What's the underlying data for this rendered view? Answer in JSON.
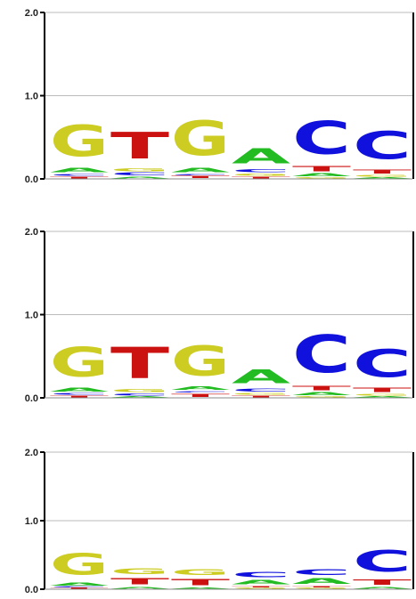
{
  "chart_data": [
    {
      "type": "sequence-logo",
      "ylim": [
        0,
        2
      ],
      "yticks": [
        {
          "value": 0,
          "label": "0.0"
        },
        {
          "value": 1,
          "label": "1.0"
        },
        {
          "value": 2,
          "label": "2.0"
        }
      ],
      "grid": true,
      "positions": [
        [
          {
            "letter": "T",
            "height": 0.03
          },
          {
            "letter": "C",
            "height": 0.03
          },
          {
            "letter": "A",
            "height": 0.09
          },
          {
            "letter": "G",
            "height": 0.6
          }
        ],
        [
          {
            "letter": "A",
            "height": 0.03
          },
          {
            "letter": "C",
            "height": 0.05
          },
          {
            "letter": "G",
            "height": 0.06
          },
          {
            "letter": "T",
            "height": 0.51
          }
        ],
        [
          {
            "letter": "T",
            "height": 0.04
          },
          {
            "letter": "C",
            "height": 0.02
          },
          {
            "letter": "A",
            "height": 0.09
          },
          {
            "letter": "G",
            "height": 0.67
          }
        ],
        [
          {
            "letter": "T",
            "height": 0.03
          },
          {
            "letter": "G",
            "height": 0.04
          },
          {
            "letter": "C",
            "height": 0.06
          },
          {
            "letter": "A",
            "height": 0.29
          }
        ],
        [
          {
            "letter": "G",
            "height": 0.02
          },
          {
            "letter": "A",
            "height": 0.05
          },
          {
            "letter": "T",
            "height": 0.1
          },
          {
            "letter": "C",
            "height": 0.64
          }
        ],
        [
          {
            "letter": "A",
            "height": 0.02
          },
          {
            "letter": "G",
            "height": 0.03
          },
          {
            "letter": "T",
            "height": 0.08
          },
          {
            "letter": "C",
            "height": 0.54
          }
        ]
      ]
    },
    {
      "type": "sequence-logo",
      "ylim": [
        0,
        2
      ],
      "yticks": [
        {
          "value": 0,
          "label": "0.0"
        },
        {
          "value": 1,
          "label": "1.0"
        },
        {
          "value": 2,
          "label": "2.0"
        }
      ],
      "grid": true,
      "positions": [
        [
          {
            "letter": "T",
            "height": 0.03
          },
          {
            "letter": "C",
            "height": 0.03
          },
          {
            "letter": "A",
            "height": 0.08
          },
          {
            "letter": "G",
            "height": 0.57
          }
        ],
        [
          {
            "letter": "A",
            "height": 0.02
          },
          {
            "letter": "C",
            "height": 0.04
          },
          {
            "letter": "G",
            "height": 0.05
          },
          {
            "letter": "T",
            "height": 0.6
          }
        ],
        [
          {
            "letter": "T",
            "height": 0.06
          },
          {
            "letter": "C",
            "height": 0.02
          },
          {
            "letter": "A",
            "height": 0.07
          },
          {
            "letter": "G",
            "height": 0.58
          }
        ],
        [
          {
            "letter": "T",
            "height": 0.03
          },
          {
            "letter": "G",
            "height": 0.03
          },
          {
            "letter": "C",
            "height": 0.06
          },
          {
            "letter": "A",
            "height": 0.27
          }
        ],
        [
          {
            "letter": "G",
            "height": 0.02
          },
          {
            "letter": "A",
            "height": 0.05
          },
          {
            "letter": "T",
            "height": 0.09
          },
          {
            "letter": "C",
            "height": 0.72
          }
        ],
        [
          {
            "letter": "A",
            "height": 0.02
          },
          {
            "letter": "G",
            "height": 0.03
          },
          {
            "letter": "T",
            "height": 0.09
          },
          {
            "letter": "C",
            "height": 0.54
          }
        ]
      ]
    },
    {
      "type": "sequence-logo",
      "ylim": [
        0,
        2
      ],
      "yticks": [
        {
          "value": 0,
          "label": "0.0"
        },
        {
          "value": 1,
          "label": "1.0"
        },
        {
          "value": 2,
          "label": "2.0"
        }
      ],
      "grid": true,
      "positions": [
        [
          {
            "letter": "T",
            "height": 0.02
          },
          {
            "letter": "C",
            "height": 0.02
          },
          {
            "letter": "A",
            "height": 0.07
          },
          {
            "letter": "G",
            "height": 0.5
          }
        ],
        [
          {
            "letter": "A",
            "height": 0.04
          },
          {
            "letter": "T",
            "height": 0.15
          },
          {
            "letter": "G",
            "height": 0.14
          }
        ],
        [
          {
            "letter": "A",
            "height": 0.03
          },
          {
            "letter": "T",
            "height": 0.15
          },
          {
            "letter": "G",
            "height": 0.13
          }
        ],
        [
          {
            "letter": "G",
            "height": 0.02
          },
          {
            "letter": "T",
            "height": 0.03
          },
          {
            "letter": "A",
            "height": 0.1
          },
          {
            "letter": "C",
            "height": 0.12
          }
        ],
        [
          {
            "letter": "G",
            "height": 0.02
          },
          {
            "letter": "T",
            "height": 0.03
          },
          {
            "letter": "A",
            "height": 0.13
          },
          {
            "letter": "C",
            "height": 0.13
          }
        ],
        [
          {
            "letter": "A",
            "height": 0.04
          },
          {
            "letter": "T",
            "height": 0.12
          },
          {
            "letter": "C",
            "height": 0.5
          }
        ]
      ]
    }
  ],
  "letter_colors": {
    "A": "#22bb22",
    "C": "#1111dd",
    "G": "#cccc22",
    "T": "#cc1111"
  },
  "axis_color": "#000000",
  "grid_color": "#bbbbbb"
}
